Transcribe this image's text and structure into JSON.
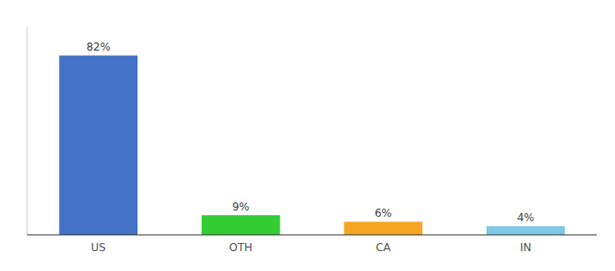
{
  "chart_data": {
    "type": "bar",
    "categories": [
      "US",
      "OTH",
      "CA",
      "IN"
    ],
    "values": [
      82,
      9,
      6,
      4
    ],
    "value_labels": [
      "82%",
      "9%",
      "6%",
      "4%"
    ],
    "colors": [
      "#4472c4",
      "#33cc33",
      "#f5a623",
      "#7ec8e3"
    ],
    "ylim": [
      0,
      95
    ],
    "data_labels": true,
    "tick_labels": "x",
    "grid": false
  }
}
